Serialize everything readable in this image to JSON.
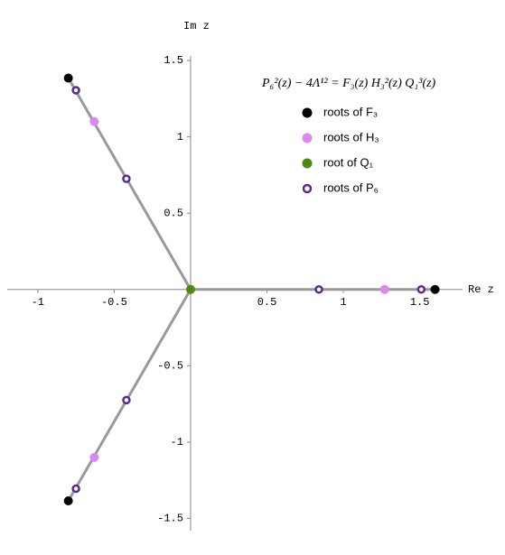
{
  "chart_data": {
    "type": "scatter",
    "title": "P₆²(z) − 4Λ¹² = F₃(z) H₃²(z) Q₁³(z)",
    "x_label": "Re z",
    "y_label": "Im z",
    "xlim": [
      -1.2,
      1.78
    ],
    "ylim": [
      -1.58,
      1.53
    ],
    "xticks": [
      -1,
      -0.5,
      0.5,
      1,
      1.5
    ],
    "yticks": [
      1.5,
      1,
      0.5,
      -0.5,
      -1,
      -1.5
    ],
    "line_color": "#999999",
    "series": [
      {
        "name": "roots of F₃",
        "color": "#000000",
        "marker": "filled",
        "x": [
          -0.8,
          1.6,
          -0.8
        ],
        "y": [
          1.385,
          0,
          -1.385
        ]
      },
      {
        "name": "roots of H₃",
        "color": "#dd88ee",
        "marker": "filled",
        "x": [
          -0.63,
          1.27,
          -0.63
        ],
        "y": [
          1.1,
          0,
          -1.1
        ]
      },
      {
        "name": "root of Q₁",
        "color": "#4e8a10",
        "marker": "filled",
        "x": [
          0
        ],
        "y": [
          0
        ]
      },
      {
        "name": "roots of P₆",
        "color": "#5a2a90",
        "marker": "ring",
        "x": [
          -0.75,
          -0.42,
          0.84,
          1.51,
          -0.42,
          -0.75
        ],
        "y": [
          1.305,
          0.725,
          0,
          0,
          -0.725,
          -1.305
        ]
      }
    ]
  }
}
